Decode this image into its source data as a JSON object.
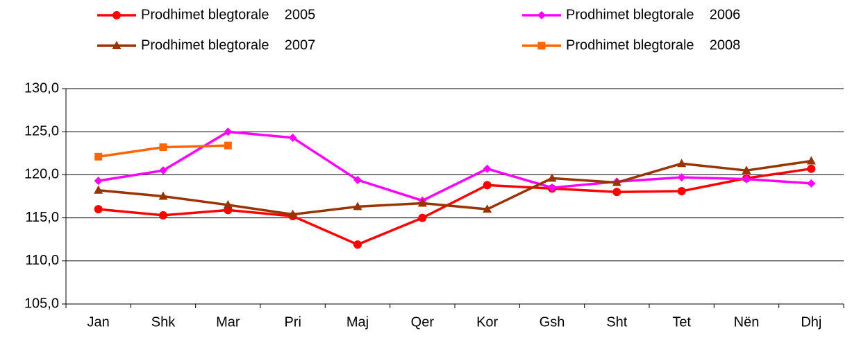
{
  "chart_data": {
    "type": "line",
    "categories": [
      "Jan",
      "Shk",
      "Mar",
      "Pri",
      "Maj",
      "Qer",
      "Kor",
      "Gsh",
      "Sht",
      "Tet",
      "Nën",
      "Dhj"
    ],
    "series": [
      {
        "name": "Prodhimet blegtorale    2005",
        "color": "#ff0000",
        "marker": "circle",
        "values": [
          116.0,
          115.3,
          115.9,
          115.2,
          111.9,
          115.0,
          118.8,
          118.4,
          118.0,
          118.1,
          119.6,
          120.7
        ]
      },
      {
        "name": "Prodhimet blegtorale    2006",
        "color": "#ff00ff",
        "marker": "diamond",
        "values": [
          119.3,
          120.5,
          125.0,
          124.3,
          119.4,
          117.0,
          120.7,
          118.5,
          119.2,
          119.7,
          119.5,
          119.0
        ]
      },
      {
        "name": "Prodhimet blegtorale    2007",
        "color": "#993300",
        "marker": "triangle",
        "values": [
          118.2,
          117.5,
          116.5,
          115.4,
          116.3,
          116.7,
          116.0,
          119.6,
          119.1,
          121.3,
          120.5,
          121.6
        ]
      },
      {
        "name": "Prodhimet blegtorale    2008",
        "color": "#ff6600",
        "marker": "square",
        "values": [
          122.1,
          123.2,
          123.4,
          null,
          null,
          null,
          null,
          null,
          null,
          null,
          null,
          null
        ]
      }
    ],
    "ylim": [
      105,
      130
    ],
    "yticks": [
      {
        "value": 105,
        "label": "105,0"
      },
      {
        "value": 110,
        "label": "110,0"
      },
      {
        "value": 115,
        "label": "115,0"
      },
      {
        "value": 120,
        "label": "120,0"
      },
      {
        "value": 125,
        "label": "125,0"
      },
      {
        "value": 130,
        "label": "130,0"
      }
    ],
    "grid": true,
    "legend": "top"
  }
}
